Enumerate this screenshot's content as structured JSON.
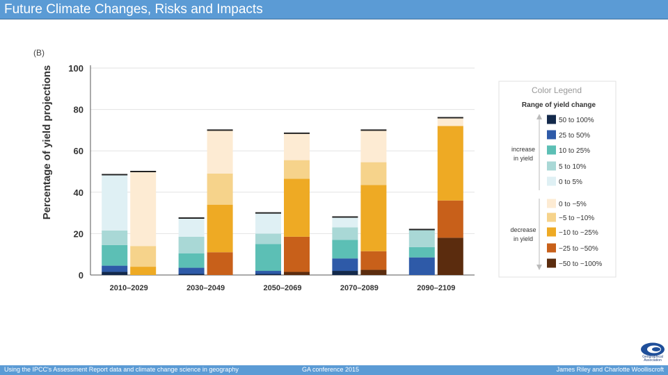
{
  "header": {
    "title": "Future Climate Changes, Risks and Impacts"
  },
  "footer": {
    "left": "Using the IPCC's Assessment Report data and climate change science in geography",
    "middle": "GA conference 2015",
    "right": "James Riley and Charlotte Woolliscroft"
  },
  "logo": {
    "icon": "geographical-association-logo-icon",
    "text": "Geographical Association"
  },
  "chart_data": {
    "type": "bar",
    "panel_label": "(B)",
    "ylabel": "Percentage of yield projections",
    "ylim": [
      0,
      100
    ],
    "yticks": [
      0,
      20,
      40,
      60,
      80,
      100
    ],
    "categories": [
      "2010–2029",
      "2030–2049",
      "2050–2069",
      "2070–2089",
      "2090–2109"
    ],
    "grid": true,
    "legend": {
      "title": "Color Legend",
      "subtitle": "Range of yield change",
      "increase_label": [
        "increase",
        "in yield"
      ],
      "decrease_label": [
        "decrease",
        "in yield"
      ],
      "placement": "right",
      "items": [
        {
          "label": "50 to 100%",
          "color": "#13294b"
        },
        {
          "label": "25 to 50%",
          "color": "#2e5aa8"
        },
        {
          "label": "10 to 25%",
          "color": "#5cbfb5"
        },
        {
          "label": "5 to 10%",
          "color": "#a9d8d6"
        },
        {
          "label": "0 to 5%",
          "color": "#dff0f4"
        },
        {
          "label": "0 to −5%",
          "color": "#fdebd3"
        },
        {
          "label": "−5 to −10%",
          "color": "#f6d38b"
        },
        {
          "label": "−10 to −25%",
          "color": "#eeaa24"
        },
        {
          "label": "−25 to −50%",
          "color": "#c8601a"
        },
        {
          "label": "−50 to −100%",
          "color": "#5b2c0e"
        }
      ]
    },
    "bars": [
      {
        "category": "2010–2029",
        "group": "increase",
        "segments": [
          {
            "range": "50 to 100%",
            "value": 1.5
          },
          {
            "range": "25 to 50%",
            "value": 3
          },
          {
            "range": "10 to 25%",
            "value": 10
          },
          {
            "range": "5 to 10%",
            "value": 7
          },
          {
            "range": "0 to 5%",
            "value": 27
          }
        ]
      },
      {
        "category": "2010–2029",
        "group": "decrease",
        "segments": [
          {
            "range": "−10 to −25%",
            "value": 4
          },
          {
            "range": "−5 to −10%",
            "value": 10
          },
          {
            "range": "0 to −5%",
            "value": 36
          }
        ]
      },
      {
        "category": "2030–2049",
        "group": "increase",
        "segments": [
          {
            "range": "50 to 100%",
            "value": 0.5
          },
          {
            "range": "25 to 50%",
            "value": 3
          },
          {
            "range": "10 to 25%",
            "value": 7
          },
          {
            "range": "5 to 10%",
            "value": 8
          },
          {
            "range": "0 to 5%",
            "value": 9
          }
        ]
      },
      {
        "category": "2030–2049",
        "group": "decrease",
        "segments": [
          {
            "range": "−25 to −50%",
            "value": 11
          },
          {
            "range": "−10 to −25%",
            "value": 23
          },
          {
            "range": "−5 to −10%",
            "value": 15
          },
          {
            "range": "0 to −5%",
            "value": 21
          }
        ]
      },
      {
        "category": "2050–2069",
        "group": "increase",
        "segments": [
          {
            "range": "50 to 100%",
            "value": 0.5
          },
          {
            "range": "25 to 50%",
            "value": 1.5
          },
          {
            "range": "10 to 25%",
            "value": 13
          },
          {
            "range": "5 to 10%",
            "value": 5
          },
          {
            "range": "0 to 5%",
            "value": 10
          }
        ]
      },
      {
        "category": "2050–2069",
        "group": "decrease",
        "segments": [
          {
            "range": "−50 to −100%",
            "value": 1.5
          },
          {
            "range": "−25 to −50%",
            "value": 17
          },
          {
            "range": "−10 to −25%",
            "value": 28
          },
          {
            "range": "−5 to −10%",
            "value": 9
          },
          {
            "range": "0 to −5%",
            "value": 13
          }
        ]
      },
      {
        "category": "2070–2089",
        "group": "increase",
        "segments": [
          {
            "range": "50 to 100%",
            "value": 2
          },
          {
            "range": "25 to 50%",
            "value": 6
          },
          {
            "range": "10 to 25%",
            "value": 9
          },
          {
            "range": "5 to 10%",
            "value": 6
          },
          {
            "range": "0 to 5%",
            "value": 5
          }
        ]
      },
      {
        "category": "2070–2089",
        "group": "decrease",
        "segments": [
          {
            "range": "−50 to −100%",
            "value": 2.5
          },
          {
            "range": "−25 to −50%",
            "value": 9
          },
          {
            "range": "−10 to −25%",
            "value": 32
          },
          {
            "range": "−5 to −10%",
            "value": 11
          },
          {
            "range": "0 to −5%",
            "value": 15.5
          }
        ]
      },
      {
        "category": "2090–2109",
        "group": "increase",
        "segments": [
          {
            "range": "25 to 50%",
            "value": 8.5
          },
          {
            "range": "10 to 25%",
            "value": 5
          },
          {
            "range": "5 to 10%",
            "value": 8.5
          }
        ]
      },
      {
        "category": "2090–2109",
        "group": "decrease",
        "segments": [
          {
            "range": "−50 to −100%",
            "value": 18
          },
          {
            "range": "−25 to −50%",
            "value": 18
          },
          {
            "range": "−10 to −25%",
            "value": 36
          },
          {
            "range": "0 to −5%",
            "value": 4
          }
        ]
      }
    ]
  }
}
